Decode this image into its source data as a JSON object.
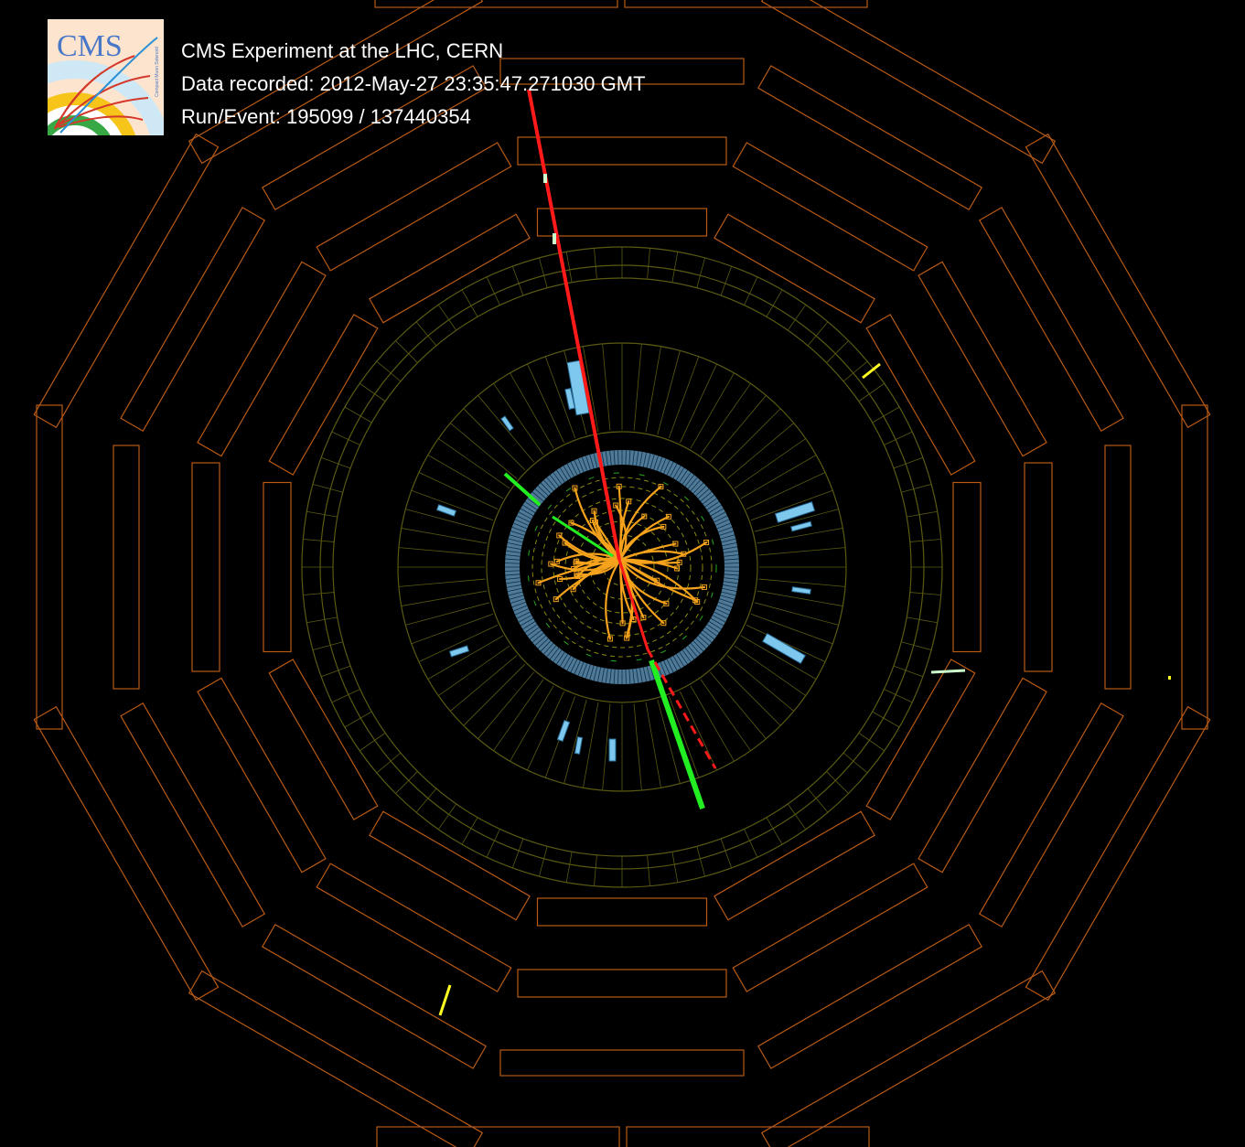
{
  "logo": {
    "text": "CMS",
    "subtitle": "Compact Muon Solenoid"
  },
  "event_info": {
    "experiment": "CMS Experiment at the LHC, CERN",
    "recorded": "Data recorded: 2012-May-27 23:35:47.271030 GMT",
    "run_event": "Run/Event: 195099 / 137440354"
  },
  "colors": {
    "background": "#000000",
    "muon_chambers": "#b85a14",
    "hcal": "#5a5a12",
    "ecal": "#6aa2c6",
    "ecal_deposits": "#7ec8ee",
    "tracks": "#f5a21c",
    "muon_track": "#ff1a1a",
    "electron_track": "#22ee22",
    "hits": "#ffff22"
  },
  "icons": {
    "logo": "cms-logo-icon"
  }
}
